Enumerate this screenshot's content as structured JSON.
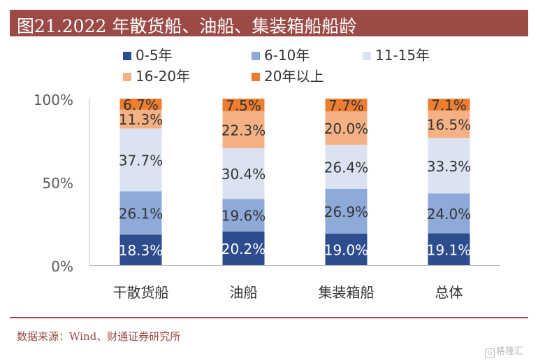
{
  "header": {
    "title": "图21.2022 年散货船、油船、集装箱船船龄"
  },
  "footer": {
    "source": "数据来源：Wind、财通证券研究所"
  },
  "watermark": {
    "text": "格隆汇",
    "icon": "G"
  },
  "colors": {
    "title_bar": "#9b4a45",
    "series": [
      "#2e4d8f",
      "#8eaad9",
      "#dbe3f3",
      "#f5b184",
      "#ee7d2f"
    ]
  },
  "chart_data": {
    "type": "bar",
    "stacked": true,
    "percent": true,
    "categories": [
      "干散货船",
      "油船",
      "集装箱船",
      "总体"
    ],
    "series": [
      {
        "name": "0-5年",
        "values": [
          18.3,
          20.2,
          19.0,
          19.1
        ],
        "labels": [
          "18.3%",
          "20.2%",
          "19.0%",
          "19.1%"
        ]
      },
      {
        "name": "6-10年",
        "values": [
          26.1,
          19.6,
          26.9,
          24.0
        ],
        "labels": [
          "26.1%",
          "19.6%",
          "26.9%",
          "24.0%"
        ]
      },
      {
        "name": "11-15年",
        "values": [
          37.7,
          30.4,
          26.4,
          33.3
        ],
        "labels": [
          "37.7%",
          "30.4%",
          "26.4%",
          "33.3%"
        ]
      },
      {
        "name": "16-20年",
        "values": [
          11.3,
          22.3,
          20.0,
          16.5
        ],
        "labels": [
          "11.3%",
          "22.3%",
          "20.0%",
          "16.5%"
        ]
      },
      {
        "name": "20年以上",
        "values": [
          6.7,
          7.5,
          7.7,
          7.1
        ],
        "labels": [
          "6.7%",
          "7.5%",
          "7.7%",
          "7.1%"
        ]
      }
    ],
    "yticks": [
      "0%",
      "50%",
      "100%"
    ],
    "ylim": [
      0,
      100
    ],
    "grid": false,
    "legend_position": "top"
  }
}
